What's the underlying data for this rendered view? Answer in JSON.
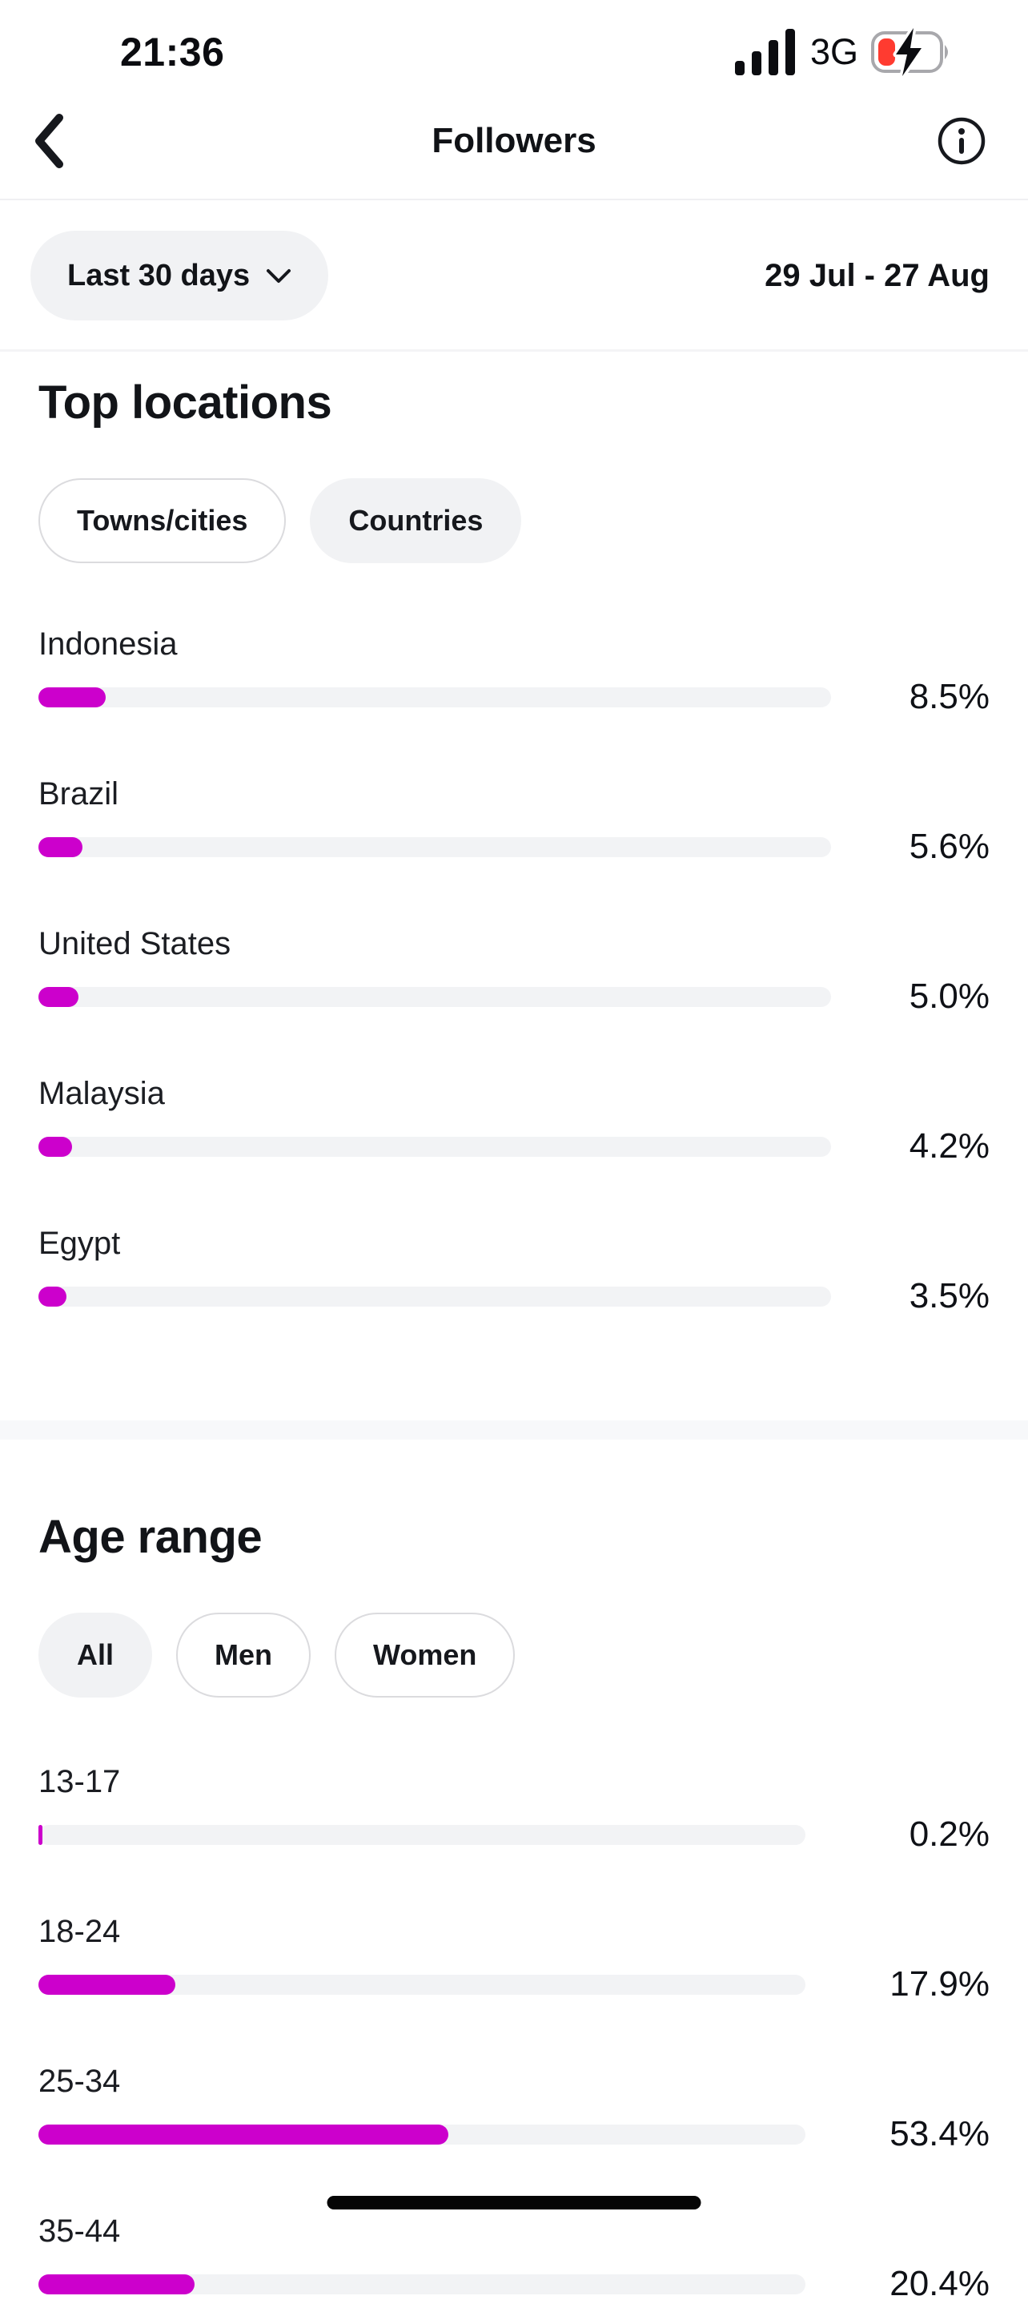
{
  "status_bar": {
    "time": "21:36",
    "network": "3G",
    "signal_icon": "signal-bars-4",
    "battery_icon": "battery-low-charging"
  },
  "nav": {
    "back_icon": "chevron-left",
    "title": "Followers",
    "info_icon": "info-circle"
  },
  "filter": {
    "period_label": "Last 30 days",
    "period_icon": "chevron-down",
    "date_range": "29 Jul - 27 Aug"
  },
  "sections": {
    "top_locations": {
      "heading": "Top locations",
      "tabs": [
        {
          "label": "Towns/cities",
          "selected": false
        },
        {
          "label": "Countries",
          "selected": true
        }
      ],
      "rows": [
        {
          "label": "Indonesia",
          "percent": 8.5,
          "percent_label": "8.5%"
        },
        {
          "label": "Brazil",
          "percent": 5.6,
          "percent_label": "5.6%"
        },
        {
          "label": "United States",
          "percent": 5.0,
          "percent_label": "5.0%"
        },
        {
          "label": "Malaysia",
          "percent": 4.2,
          "percent_label": "4.2%"
        },
        {
          "label": "Egypt",
          "percent": 3.5,
          "percent_label": "3.5%"
        }
      ]
    },
    "age_range": {
      "heading": "Age range",
      "tabs": [
        {
          "label": "All",
          "selected": true
        },
        {
          "label": "Men",
          "selected": false
        },
        {
          "label": "Women",
          "selected": false
        }
      ],
      "rows": [
        {
          "label": "13-17",
          "percent": 0.2,
          "percent_label": "0.2%"
        },
        {
          "label": "18-24",
          "percent": 17.9,
          "percent_label": "17.9%"
        },
        {
          "label": "25-34",
          "percent": 53.4,
          "percent_label": "53.4%"
        },
        {
          "label": "35-44",
          "percent": 20.4,
          "percent_label": "20.4%"
        }
      ]
    }
  },
  "colors": {
    "accent": "#CC00CC",
    "bar_track": "#F2F3F5",
    "pill_bg": "#F1F2F4",
    "pill_border": "#DBDBDE",
    "battery_red": "#FF3B30",
    "text_primary": "#16181D"
  },
  "chart_data": [
    {
      "type": "bar",
      "title": "Top locations (Countries)",
      "categories": [
        "Indonesia",
        "Brazil",
        "United States",
        "Malaysia",
        "Egypt"
      ],
      "values": [
        8.5,
        5.6,
        5.0,
        4.2,
        3.5
      ],
      "unit": "%",
      "orientation": "horizontal",
      "xlim": [
        0,
        100
      ],
      "grid": false,
      "legend": false
    },
    {
      "type": "bar",
      "title": "Age range (All)",
      "categories": [
        "13-17",
        "18-24",
        "25-34",
        "35-44"
      ],
      "values": [
        0.2,
        17.9,
        53.4,
        20.4
      ],
      "unit": "%",
      "orientation": "horizontal",
      "xlim": [
        0,
        100
      ],
      "grid": false,
      "legend": false
    }
  ]
}
